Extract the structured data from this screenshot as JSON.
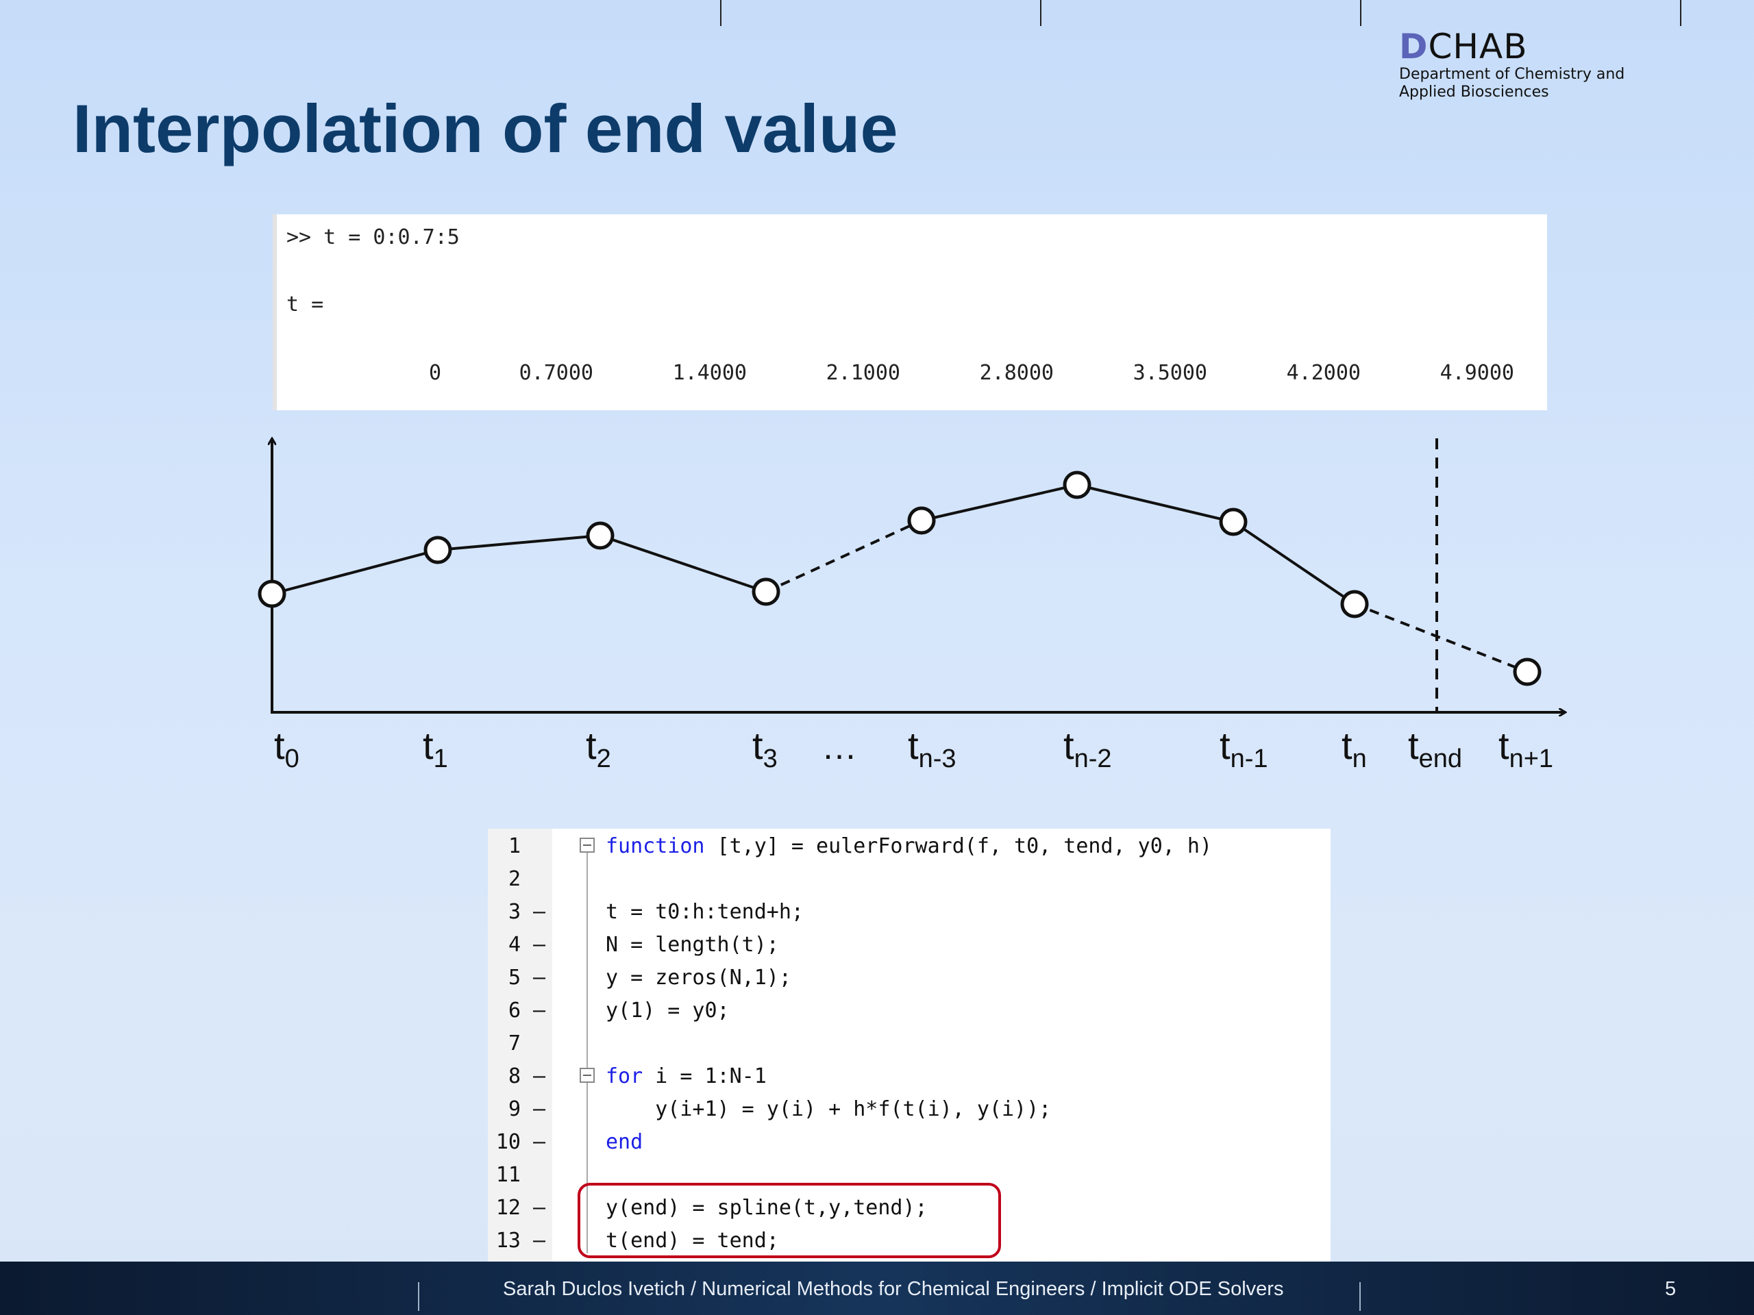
{
  "slide": {
    "title": "Interpolation of end value",
    "page_number": "5"
  },
  "logo": {
    "mark_initial": "D",
    "mark_rest": "CHAB",
    "line1": "Department of Chemistry and",
    "line2": "Applied Biosciences"
  },
  "console": {
    "command": ">> t = 0:0.7:5",
    "var_line": "t =",
    "values": [
      "0",
      "0.7000",
      "1.4000",
      "2.1000",
      "2.8000",
      "3.5000",
      "4.2000",
      "4.9000"
    ]
  },
  "diagram": {
    "axis_labels": [
      {
        "base": "t",
        "sub": "0"
      },
      {
        "base": "t",
        "sub": "1"
      },
      {
        "base": "t",
        "sub": "2"
      },
      {
        "base": "t",
        "sub": "3"
      },
      {
        "base": "…",
        "sub": ""
      },
      {
        "base": "t",
        "sub": "n-3"
      },
      {
        "base": "t",
        "sub": "n-2"
      },
      {
        "base": "t",
        "sub": "n-1"
      },
      {
        "base": "t",
        "sub": "n"
      },
      {
        "base": "t",
        "sub": "end"
      },
      {
        "base": "t",
        "sub": "n+1"
      }
    ]
  },
  "code": {
    "lines": [
      {
        "num": "1",
        "dash": "",
        "kw": "function",
        "text": " [t,y] = eulerForward(f, t0, tend, y0, h)"
      },
      {
        "num": "2",
        "dash": "",
        "kw": "",
        "text": ""
      },
      {
        "num": "3",
        "dash": "–",
        "kw": "",
        "text": "t = t0:h:tend+h;"
      },
      {
        "num": "4",
        "dash": "–",
        "kw": "",
        "text": "N = length(t);"
      },
      {
        "num": "5",
        "dash": "–",
        "kw": "",
        "text": "y = zeros(N,1);"
      },
      {
        "num": "6",
        "dash": "–",
        "kw": "",
        "text": "y(1) = y0;"
      },
      {
        "num": "7",
        "dash": "",
        "kw": "",
        "text": ""
      },
      {
        "num": "8",
        "dash": "–",
        "kw": "for",
        "text": " i = 1:N-1"
      },
      {
        "num": "9",
        "dash": "–",
        "kw": "",
        "text": "    y(i+1) = y(i) + h*f(t(i), y(i));"
      },
      {
        "num": "10",
        "dash": "–",
        "kw": "end",
        "text": ""
      },
      {
        "num": "11",
        "dash": "",
        "kw": "",
        "text": ""
      },
      {
        "num": "12",
        "dash": "–",
        "kw": "",
        "text": "y(end) = spline(t,y,tend);"
      },
      {
        "num": "13",
        "dash": "–",
        "kw": "",
        "text": "t(end) = tend;"
      }
    ]
  },
  "footer": {
    "text": "Sarah Duclos Ivetich / Numerical Methods for Chemical Engineers / Implicit ODE Solvers"
  },
  "colors": {
    "title": "#0e3c6a",
    "keyword": "#1c20e6",
    "highlight_border": "#c0001a"
  }
}
